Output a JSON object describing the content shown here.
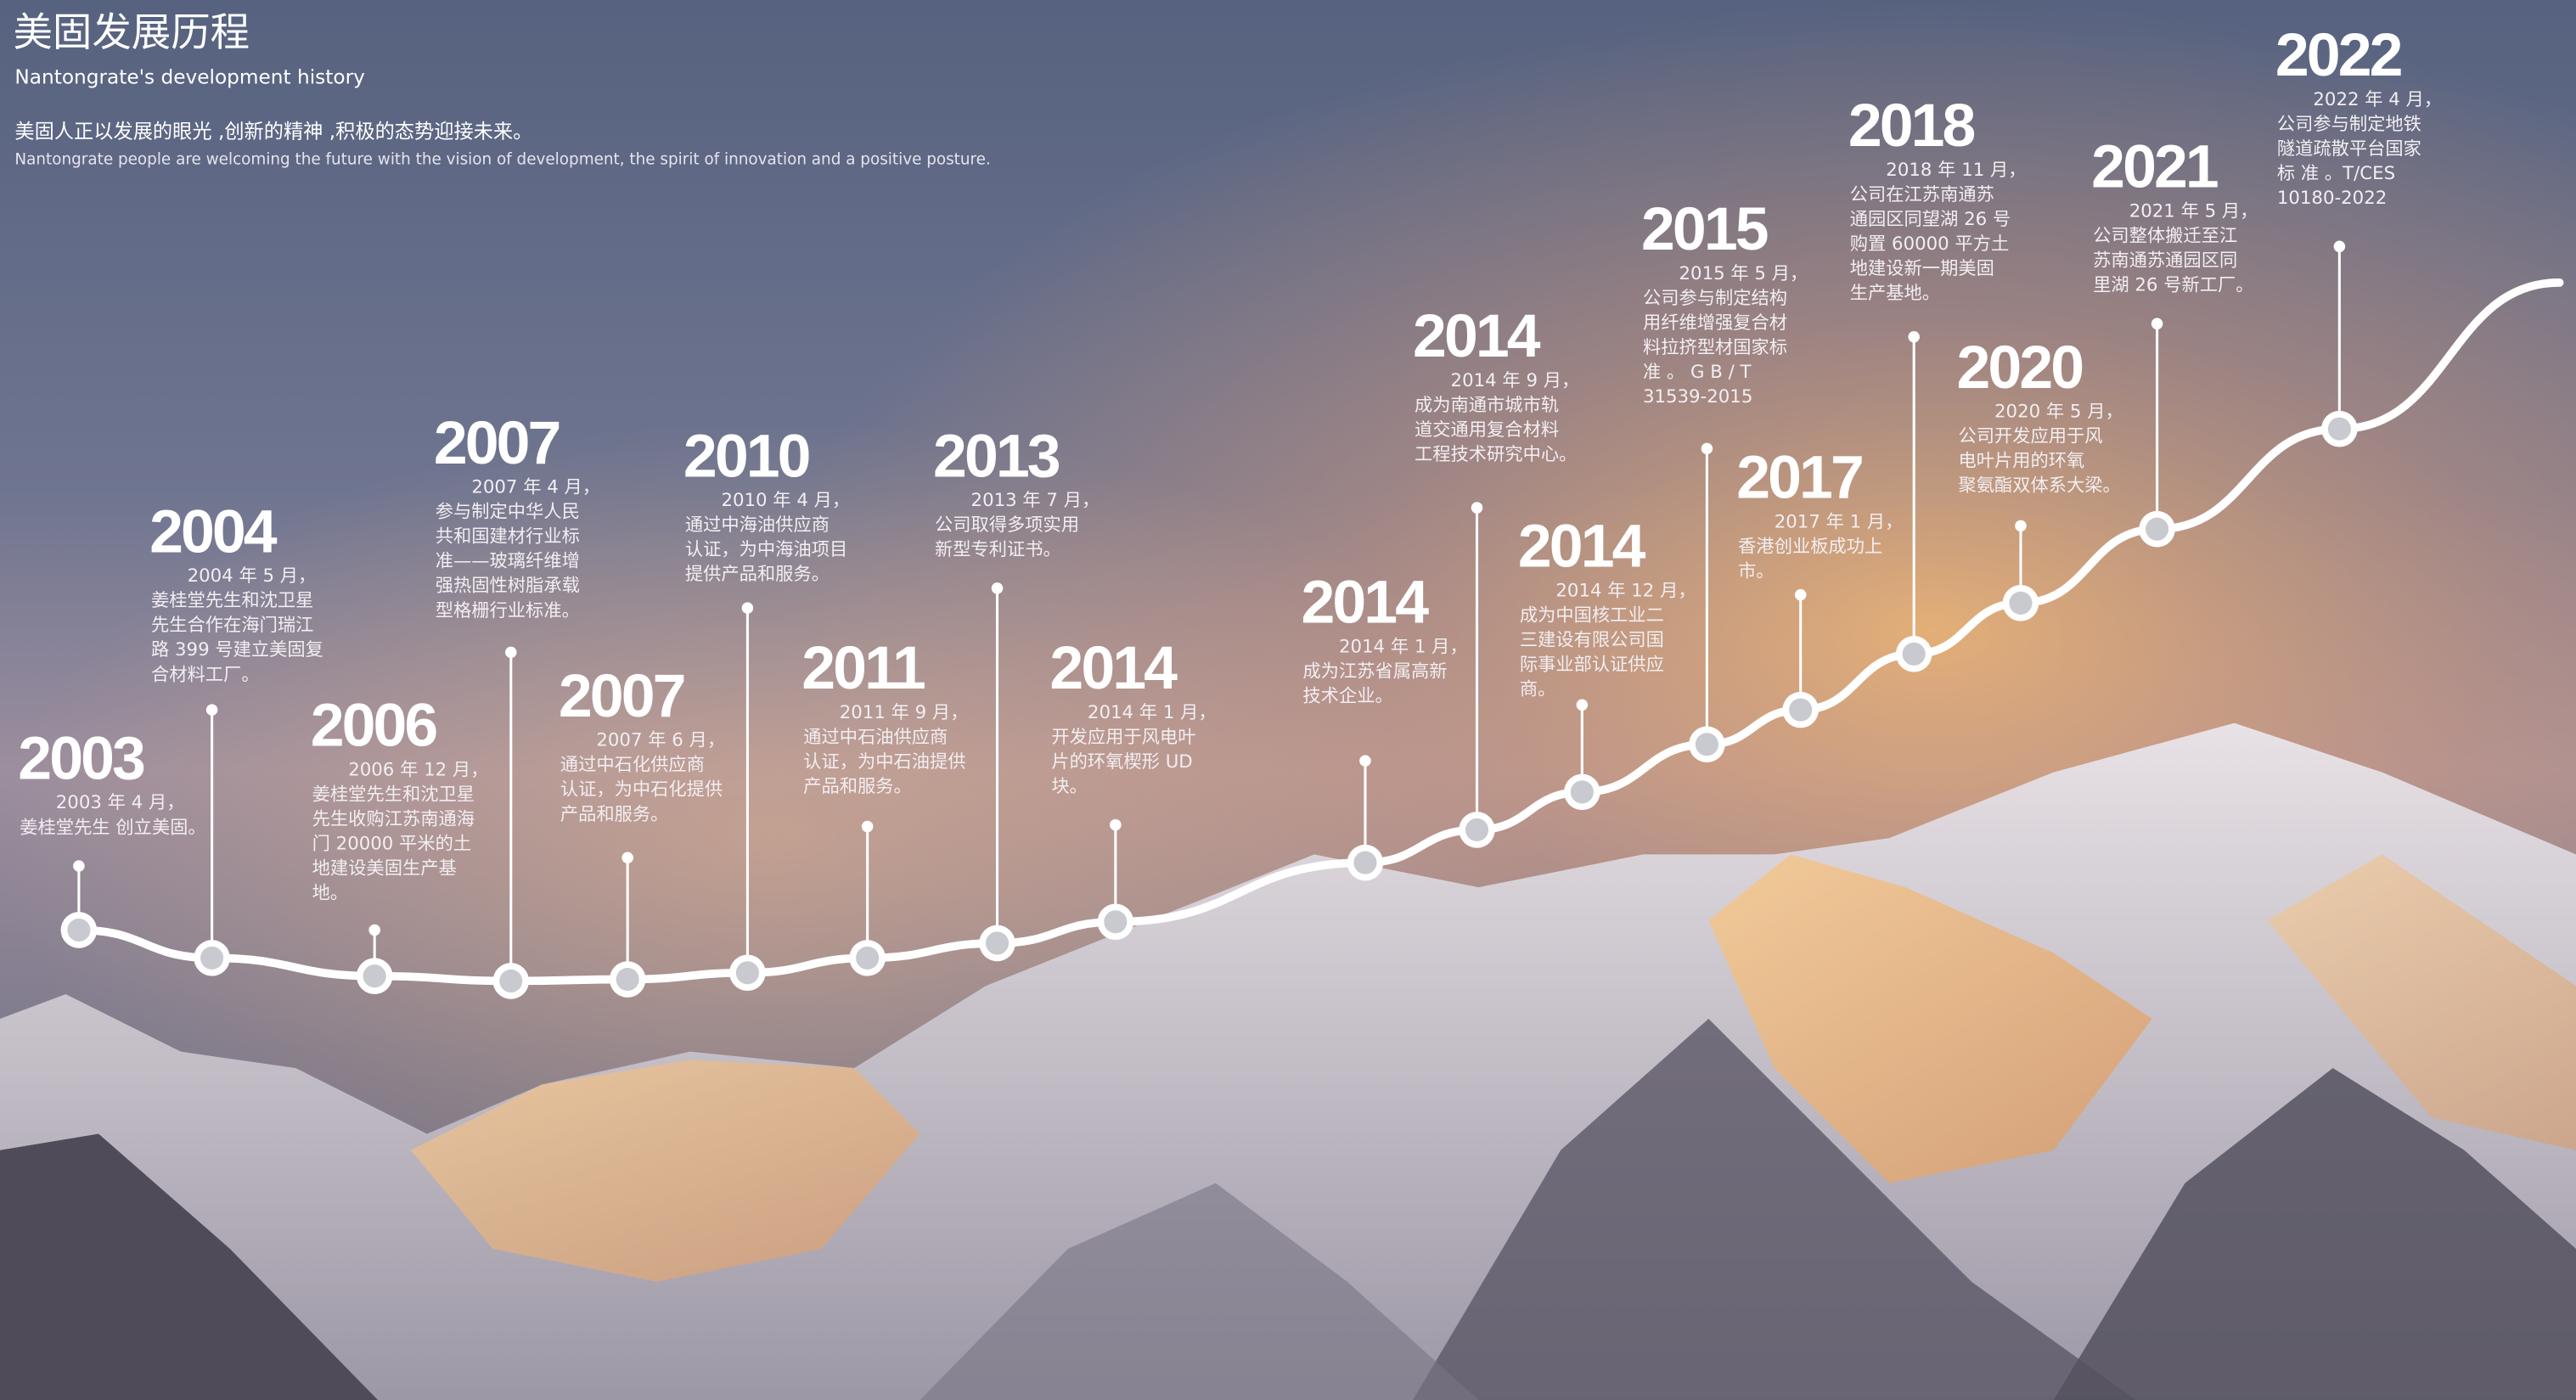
{
  "header": {
    "title": "美固发展历程",
    "subtitle": "Nantongrate's development history",
    "intro_zh": "美固人正以发展的眼光 ,创新的精神 ,积极的态势迎接未来。",
    "intro_en": "Nantongrate people are welcoming the future with the vision of development, the spirit of innovation and a positive posture."
  },
  "events": [
    {
      "year": "2003",
      "lines": [
        "2003 年 4 月，",
        "姜桂堂先生 创立美固。"
      ]
    },
    {
      "year": "2004",
      "lines": [
        "2004 年 5 月，",
        "姜桂堂先生和沈卫星",
        "先生合作在海门瑞江",
        "路 399 号建立美固复",
        "合材料工厂。"
      ]
    },
    {
      "year": "2006",
      "lines": [
        "2006 年 12 月，",
        "姜桂堂先生和沈卫星",
        "先生收购江苏南通海",
        "门 20000 平米的土",
        "地建设美固生产基",
        "地。"
      ]
    },
    {
      "year": "2007",
      "lines": [
        "2007 年 4 月，",
        "参与制定中华人民",
        "共和国建材行业标",
        "准——玻璃纤维增",
        "强热固性树脂承载",
        "型格栅行业标准。"
      ]
    },
    {
      "year": "2007",
      "lines": [
        "2007 年 6 月，",
        "通过中石化供应商",
        "认证，为中石化提供",
        "产品和服务。"
      ]
    },
    {
      "year": "2010",
      "lines": [
        "2010 年 4 月，",
        "通过中海油供应商",
        "认证，为中海油项目",
        "提供产品和服务。"
      ]
    },
    {
      "year": "2011",
      "lines": [
        "2011 年 9 月，",
        "通过中石油供应商",
        "认证，为中石油提供",
        "产品和服务。"
      ]
    },
    {
      "year": "2013",
      "lines": [
        "2013 年 7 月，",
        "公司取得多项实用",
        "新型专利证书。"
      ]
    },
    {
      "year": "2014",
      "lines": [
        "2014 年 1 月，",
        "开发应用于风电叶",
        "片的环氧楔形 UD",
        "块。"
      ]
    },
    {
      "year": "2014",
      "lines": [
        "2014 年 1 月，",
        "成为江苏省属高新",
        "技术企业。"
      ]
    },
    {
      "year": "2014",
      "lines": [
        "2014 年 9 月，",
        "成为南通市城市轨",
        "道交通用复合材料",
        "工程技术研究中心。"
      ]
    },
    {
      "year": "2014",
      "lines": [
        "2014 年 12 月，",
        "成为中国核工业二",
        "三建设有限公司国",
        "际事业部认证供应",
        "商。"
      ]
    },
    {
      "year": "2015",
      "lines": [
        "2015 年 5 月，",
        "公司参与制定结构",
        "用纤维增强复合材",
        "料拉挤型材国家标",
        "准 。 G B / T",
        "31539-2015"
      ]
    },
    {
      "year": "2017",
      "lines": [
        "2017 年 1 月，",
        "香港创业板成功上",
        "市。"
      ]
    },
    {
      "year": "2018",
      "lines": [
        "2018 年 11 月，",
        "公司在江苏南通苏",
        "通园区同望湖 26 号",
        "购置 60000 平方土",
        "地建设新一期美固",
        "生产基地。"
      ]
    },
    {
      "year": "2020",
      "lines": [
        "2020 年 5 月，",
        "公司开发应用于风",
        "电叶片用的环氧",
        "聚氨酯双体系大梁。"
      ]
    },
    {
      "year": "2021",
      "lines": [
        "2021 年 5 月，",
        "公司整体搬迁至江",
        "苏南通苏通园区同",
        "里湖 26 号新工厂。"
      ]
    },
    {
      "year": "2022",
      "lines": [
        "2022 年 4 月，",
        "公司参与制定地铁",
        "隧道疏散平台国家",
        "标 准 。T/CES",
        "10180-2022"
      ]
    }
  ]
}
